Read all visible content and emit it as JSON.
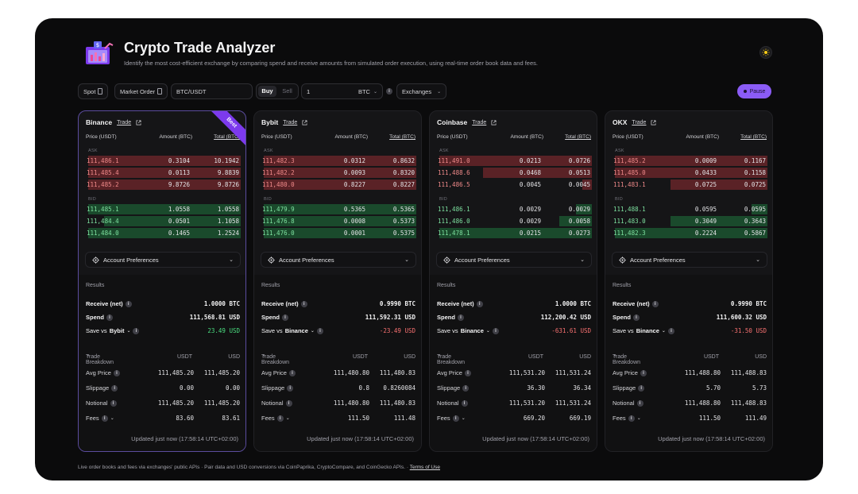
{
  "app": {
    "title": "Crypto Trade Analyzer",
    "subtitle": "Identify the most cost-efficient exchange by comparing spend and receive amounts from simulated order execution, using real-time order book data and fees.",
    "accent": "#8b5cf6"
  },
  "toolbar": {
    "spot": "Spot",
    "order_type": "Market Order",
    "pair": "BTC/USDT",
    "buy": "Buy",
    "sell": "Sell",
    "quantity": "1",
    "quantity_unit": "BTC",
    "exchanges": "Exchanges",
    "pause": "Pause"
  },
  "labels": {
    "trade": "Trade",
    "best": "Best",
    "col_price": "Price (USDT)",
    "col_amount": "Amount (BTC)",
    "col_total": "Total (BTC)",
    "ask": "ASK",
    "bid": "BID",
    "prefs": "Account Preferences",
    "results": "Results",
    "receive": "Receive (net)",
    "spend": "Spend",
    "save_vs": "Save vs",
    "breakdown": "Trade Breakdown",
    "usdt": "USDT",
    "usd": "USD",
    "avg_price": "Avg Price",
    "slippage": "Slippage",
    "notional": "Notional",
    "fees": "Fees",
    "info": "i"
  },
  "exchanges": [
    {
      "name": "Binance",
      "asks": [
        {
          "price": "111,486.1",
          "amount": "0.3104",
          "total": "10.1942",
          "depth": 0.98
        },
        {
          "price": "111,485.4",
          "amount": "0.0113",
          "total": "9.8839",
          "depth": 0.98
        },
        {
          "price": "111,485.2",
          "amount": "9.8726",
          "total": "9.8726",
          "depth": 0.98
        }
      ],
      "bids": [
        {
          "price": "111,485.1",
          "amount": "1.0558",
          "total": "1.0558",
          "depth": 0.98
        },
        {
          "price": "111,484.4",
          "amount": "0.0501",
          "total": "1.1058",
          "depth": 0.88
        },
        {
          "price": "111,484.0",
          "amount": "0.1465",
          "total": "1.2524",
          "depth": 0.98
        }
      ],
      "receive": "1.0000 BTC",
      "spend": "111,568.81 USD",
      "save_vs_name": "Bybit",
      "save_value": "23.49 USD",
      "save_sign": "positive",
      "avg_usdt": "111,485.20",
      "avg_usd": "111,485.20",
      "slip_usdt": "0.00",
      "slip_usd": "0.00",
      "notional_usdt": "111,485.20",
      "notional_usd": "111,485.20",
      "fees_usdt": "83.60",
      "fees_usd": "83.61",
      "updated": "Updated just now (17:58:14 UTC+02:00)",
      "best": true
    },
    {
      "name": "Bybit",
      "asks": [
        {
          "price": "111,482.3",
          "amount": "0.0312",
          "total": "0.8632",
          "depth": 0.98
        },
        {
          "price": "111,482.2",
          "amount": "0.0093",
          "total": "0.8320",
          "depth": 0.98
        },
        {
          "price": "111,480.0",
          "amount": "0.8227",
          "total": "0.8227",
          "depth": 0.98
        }
      ],
      "bids": [
        {
          "price": "111,479.9",
          "amount": "0.5365",
          "total": "0.5365",
          "depth": 0.98
        },
        {
          "price": "111,476.8",
          "amount": "0.0008",
          "total": "0.5373",
          "depth": 0.98
        },
        {
          "price": "111,476.0",
          "amount": "0.0001",
          "total": "0.5375",
          "depth": 0.98
        }
      ],
      "receive": "0.9990 BTC",
      "spend": "111,592.31 USD",
      "save_vs_name": "Binance",
      "save_value": "-23.49 USD",
      "save_sign": "negative",
      "avg_usdt": "111,480.80",
      "avg_usd": "111,480.83",
      "slip_usdt": "0.8",
      "slip_usd": "0.8260084",
      "notional_usdt": "111,480.80",
      "notional_usd": "111,480.83",
      "fees_usdt": "111.50",
      "fees_usd": "111.48",
      "updated": "Updated just now (17:58:14 UTC+02:00)",
      "best": false
    },
    {
      "name": "Coinbase",
      "asks": [
        {
          "price": "111,491.0",
          "amount": "0.0213",
          "total": "0.0726",
          "depth": 0.98
        },
        {
          "price": "111,488.6",
          "amount": "0.0468",
          "total": "0.0513",
          "depth": 0.7
        },
        {
          "price": "111,486.5",
          "amount": "0.0045",
          "total": "0.0045",
          "depth": 0.06
        }
      ],
      "bids": [
        {
          "price": "111,486.1",
          "amount": "0.0029",
          "total": "0.0029",
          "depth": 0.1
        },
        {
          "price": "111,486.0",
          "amount": "0.0029",
          "total": "0.0058",
          "depth": 0.21
        },
        {
          "price": "111,478.1",
          "amount": "0.0215",
          "total": "0.0273",
          "depth": 0.98
        }
      ],
      "receive": "1.0000 BTC",
      "spend": "112,200.42 USD",
      "save_vs_name": "Binance",
      "save_value": "-631.61 USD",
      "save_sign": "negative",
      "avg_usdt": "111,531.20",
      "avg_usd": "111,531.24",
      "slip_usdt": "36.30",
      "slip_usd": "36.34",
      "notional_usdt": "111,531.20",
      "notional_usd": "111,531.24",
      "fees_usdt": "669.20",
      "fees_usd": "669.19",
      "updated": "Updated just now (17:58:14 UTC+02:00)",
      "best": false
    },
    {
      "name": "OKX",
      "asks": [
        {
          "price": "111,485.2",
          "amount": "0.0009",
          "total": "0.1167",
          "depth": 0.98
        },
        {
          "price": "111,485.0",
          "amount": "0.0433",
          "total": "0.1158",
          "depth": 0.98
        },
        {
          "price": "111,483.1",
          "amount": "0.0725",
          "total": "0.0725",
          "depth": 0.62
        }
      ],
      "bids": [
        {
          "price": "111,488.1",
          "amount": "0.0595",
          "total": "0.0595",
          "depth": 0.1
        },
        {
          "price": "111,483.0",
          "amount": "0.3049",
          "total": "0.3643",
          "depth": 0.62
        },
        {
          "price": "111,482.3",
          "amount": "0.2224",
          "total": "0.5867",
          "depth": 0.98
        }
      ],
      "receive": "0.9990 BTC",
      "spend": "111,600.32 USD",
      "save_vs_name": "Binance",
      "save_value": "-31.50 USD",
      "save_sign": "negative",
      "avg_usdt": "111,488.80",
      "avg_usd": "111,488.83",
      "slip_usdt": "5.70",
      "slip_usd": "5.73",
      "notional_usdt": "111,488.80",
      "notional_usd": "111,488.83",
      "fees_usdt": "111.50",
      "fees_usd": "111.49",
      "updated": "Updated just now (17:58:14 UTC+02:00)",
      "best": false
    }
  ],
  "footer": {
    "text": "Live order books and fees via exchanges' public APIs · Pair data and USD conversions via CoinPaprika, CryptoCompare, and CoinGecko APIs. · ",
    "terms": "Terms of Use"
  }
}
